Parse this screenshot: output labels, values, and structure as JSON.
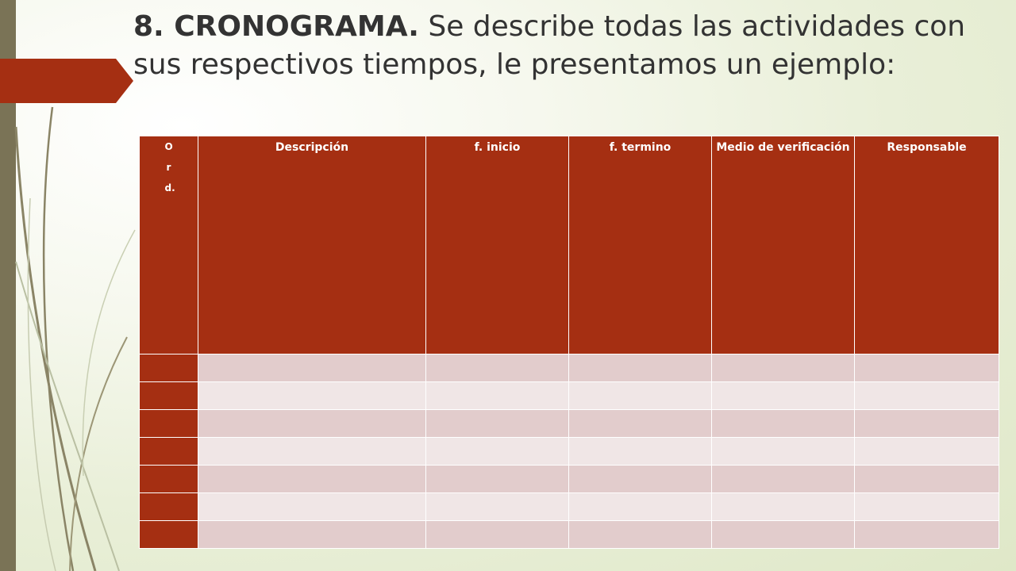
{
  "slide": {
    "title_bold": "8. CRONOGRAMA.",
    "title_rest": " Se describe todas las actividades con sus respectivos tiempos, le presentamos un ejemplo:"
  },
  "table": {
    "headers": [
      "Ord.",
      "Descripción",
      "f. inicio",
      "f. termino",
      "Medio de verificación",
      "Responsable"
    ],
    "empty_rows": 7
  },
  "colors": {
    "accent": "#a52f12",
    "row_odd": "#e2cccc",
    "row_even": "#f0e6e6",
    "left_bar": "#7a7356"
  }
}
